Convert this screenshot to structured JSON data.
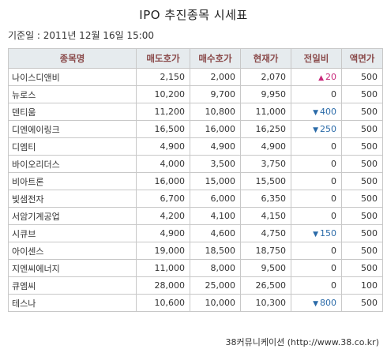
{
  "title": "IPO 추진종목 시세표",
  "base_date": "기준일 : 2011년 12월 16일 15:00",
  "table": {
    "headers": [
      "종목명",
      "매도호가",
      "매수호가",
      "현재가",
      "전일비",
      "액면가"
    ],
    "rows": [
      {
        "name": "나이스디앤비",
        "ask": "2,150",
        "bid": "2,000",
        "price": "2,070",
        "change": "20",
        "dir": "up",
        "par": "500"
      },
      {
        "name": "뉴로스",
        "ask": "10,200",
        "bid": "9,700",
        "price": "9,950",
        "change": "0",
        "dir": "none",
        "par": "500"
      },
      {
        "name": "덴티움",
        "ask": "11,200",
        "bid": "10,800",
        "price": "11,000",
        "change": "400",
        "dir": "down",
        "par": "500"
      },
      {
        "name": "디엔에이링크",
        "ask": "16,500",
        "bid": "16,000",
        "price": "16,250",
        "change": "250",
        "dir": "down",
        "par": "500"
      },
      {
        "name": "디엠티",
        "ask": "4,900",
        "bid": "4,900",
        "price": "4,900",
        "change": "0",
        "dir": "none",
        "par": "500"
      },
      {
        "name": "바이오리더스",
        "ask": "4,000",
        "bid": "3,500",
        "price": "3,750",
        "change": "0",
        "dir": "none",
        "par": "500"
      },
      {
        "name": "비아트론",
        "ask": "16,000",
        "bid": "15,000",
        "price": "15,500",
        "change": "0",
        "dir": "none",
        "par": "500"
      },
      {
        "name": "빛샘전자",
        "ask": "6,700",
        "bid": "6,000",
        "price": "6,350",
        "change": "0",
        "dir": "none",
        "par": "500"
      },
      {
        "name": "서암기계공업",
        "ask": "4,200",
        "bid": "4,100",
        "price": "4,150",
        "change": "0",
        "dir": "none",
        "par": "500"
      },
      {
        "name": "시큐브",
        "ask": "4,900",
        "bid": "4,600",
        "price": "4,750",
        "change": "150",
        "dir": "down",
        "par": "500"
      },
      {
        "name": "아이센스",
        "ask": "19,000",
        "bid": "18,500",
        "price": "18,750",
        "change": "0",
        "dir": "none",
        "par": "500"
      },
      {
        "name": "지엔씨에너지",
        "ask": "11,000",
        "bid": "8,000",
        "price": "9,500",
        "change": "0",
        "dir": "none",
        "par": "500"
      },
      {
        "name": "큐엠씨",
        "ask": "28,000",
        "bid": "25,000",
        "price": "26,500",
        "change": "0",
        "dir": "none",
        "par": "100"
      },
      {
        "name": "테스나",
        "ask": "10,600",
        "bid": "10,000",
        "price": "10,300",
        "change": "800",
        "dir": "down",
        "par": "500"
      }
    ]
  },
  "arrows": {
    "up": "▲",
    "down": "▼"
  },
  "colors": {
    "up": "#c8287a",
    "down": "#2a6aa8",
    "header_bg": "#e6ebee",
    "header_text": "#8a4a4a"
  },
  "footer": "38커뮤니케이션 (http://www.38.co.kr)"
}
